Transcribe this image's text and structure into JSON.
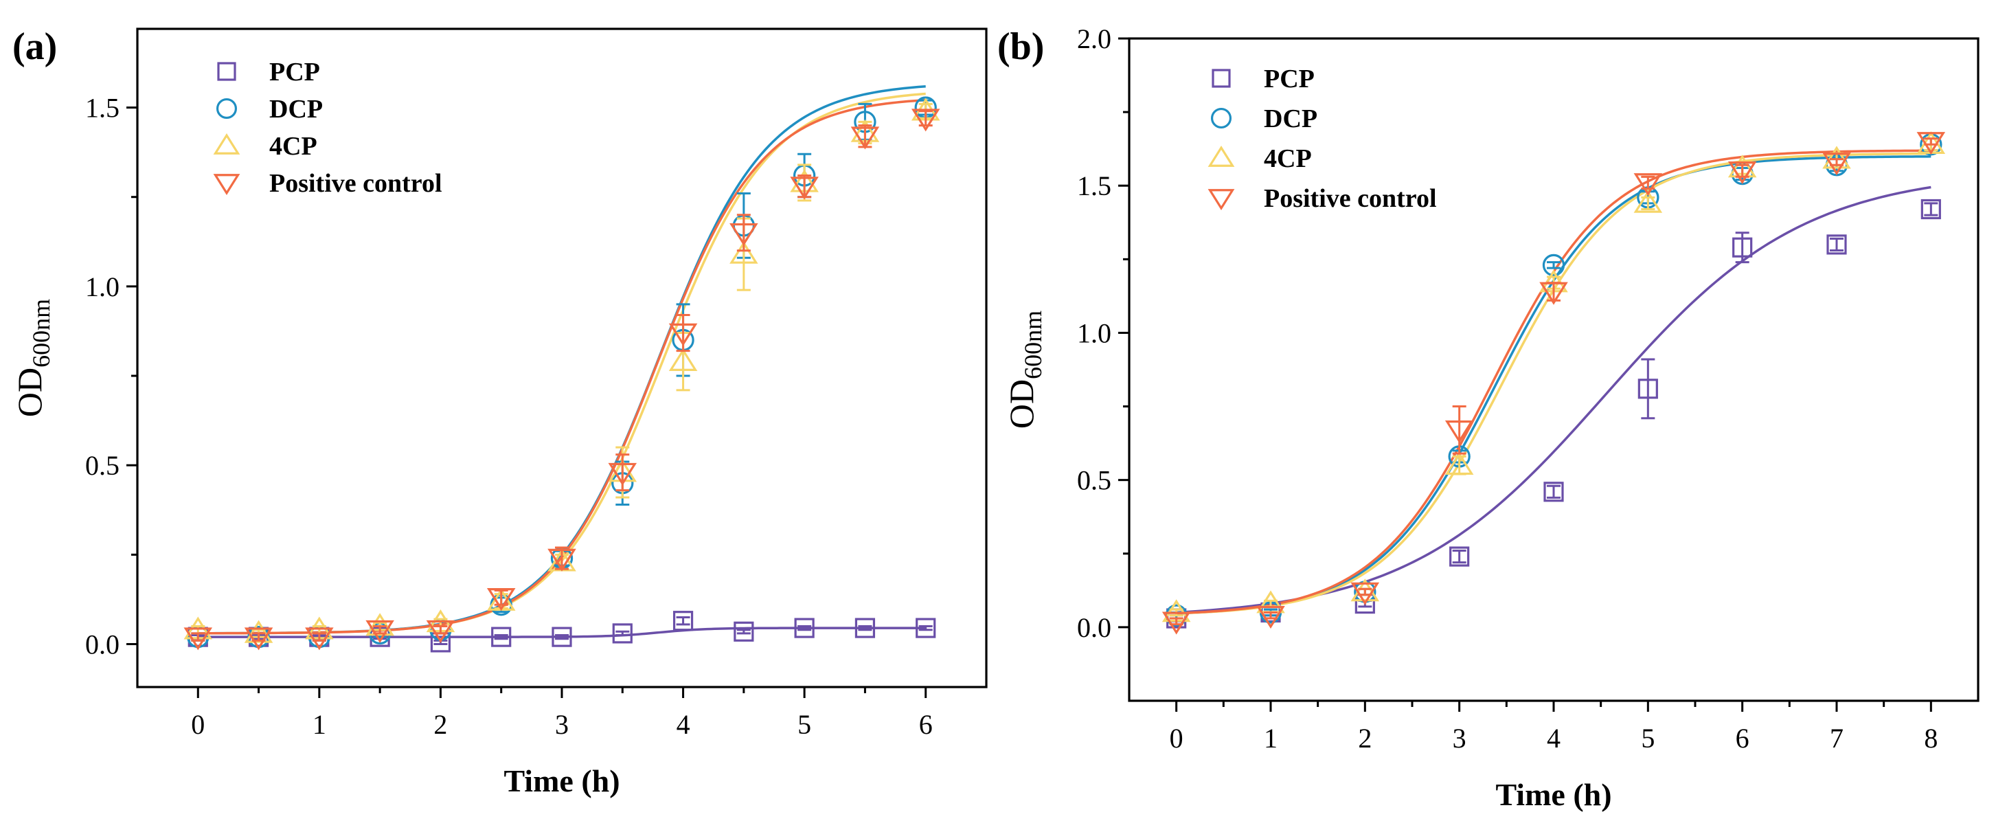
{
  "colors": {
    "PCP": "#6a4fa8",
    "DCP": "#1f8fc2",
    "4CP": "#f6d568",
    "Positive control": "#f26b43"
  },
  "chart_data": [
    {
      "type": "scatter",
      "panel_label": "(a)",
      "xlabel": "Time (h)",
      "ylabel": {
        "main": "OD",
        "sub": "600nm"
      },
      "xlim": [
        -0.5,
        6.5
      ],
      "ylim": [
        -0.12,
        1.72
      ],
      "xticks": [
        0,
        1,
        2,
        3,
        4,
        5,
        6
      ],
      "xtick_labels": [
        "0",
        "1",
        "2",
        "3",
        "4",
        "5",
        "6"
      ],
      "yticks": [
        0,
        0.5,
        1,
        1.5
      ],
      "ytick_labels": [
        "0.0",
        "0.5",
        "1.0",
        "1.5"
      ],
      "grid": false,
      "legend_position": "top-left",
      "series": [
        {
          "name": "PCP",
          "marker": "square",
          "x": [
            0,
            0.5,
            1,
            1.5,
            2,
            2.5,
            3,
            3.5,
            4,
            4.5,
            5,
            5.5,
            6
          ],
          "y": [
            0.02,
            0.02,
            0.02,
            0.02,
            0.005,
            0.02,
            0.02,
            0.03,
            0.065,
            0.035,
            0.045,
            0.045,
            0.045
          ],
          "err": [
            0.005,
            0.005,
            0.005,
            0.005,
            0.005,
            0.005,
            0.005,
            0.005,
            0.01,
            0.005,
            0.005,
            0.005,
            0.005
          ],
          "fit": {
            "base": 0.02,
            "top": 0.045,
            "x0": 3.8,
            "k": 5
          }
        },
        {
          "name": "DCP",
          "marker": "circle",
          "x": [
            0,
            0.5,
            1,
            1.5,
            2,
            2.5,
            3,
            3.5,
            4,
            4.5,
            5,
            5.5,
            6
          ],
          "y": [
            0.02,
            0.02,
            0.02,
            0.03,
            0.04,
            0.11,
            0.24,
            0.45,
            0.85,
            1.17,
            1.31,
            1.46,
            1.5
          ],
          "err": [
            0.01,
            0.01,
            0.01,
            0.01,
            0.01,
            0.02,
            0.02,
            0.06,
            0.1,
            0.09,
            0.06,
            0.05,
            0.02
          ],
          "fit": {
            "base": 0.03,
            "top": 1.57,
            "x0": 3.8,
            "k": 2.25
          }
        },
        {
          "name": "4CP",
          "marker": "triangle-up",
          "x": [
            0,
            0.5,
            1,
            1.5,
            2,
            2.5,
            3,
            3.5,
            4,
            4.5,
            5,
            5.5,
            6
          ],
          "y": [
            0.04,
            0.03,
            0.04,
            0.05,
            0.06,
            0.12,
            0.23,
            0.48,
            0.79,
            1.09,
            1.29,
            1.43,
            1.49
          ],
          "err": [
            0.01,
            0.01,
            0.01,
            0.01,
            0.01,
            0.02,
            0.02,
            0.07,
            0.08,
            0.1,
            0.05,
            0.03,
            0.02
          ],
          "fit": {
            "base": 0.03,
            "top": 1.55,
            "x0": 3.83,
            "k": 2.25
          }
        },
        {
          "name": "Positive control",
          "marker": "triangle-down",
          "x": [
            0,
            0.5,
            1,
            1.5,
            2,
            2.5,
            3,
            3.5,
            4,
            4.5,
            5,
            5.5,
            6
          ],
          "y": [
            0.02,
            0.02,
            0.02,
            0.04,
            0.04,
            0.13,
            0.24,
            0.48,
            0.87,
            1.15,
            1.28,
            1.42,
            1.47
          ],
          "err": [
            0.01,
            0.01,
            0.01,
            0.01,
            0.01,
            0.02,
            0.03,
            0.05,
            0.05,
            0.05,
            0.03,
            0.03,
            0.02
          ],
          "fit": {
            "base": 0.03,
            "top": 1.53,
            "x0": 3.78,
            "k": 2.3
          }
        }
      ]
    },
    {
      "type": "scatter",
      "panel_label": "(b)",
      "xlabel": "Time (h)",
      "ylabel": {
        "main": "OD",
        "sub": "600nm"
      },
      "xlim": [
        -0.5,
        8.5
      ],
      "ylim": [
        -0.25,
        2.0
      ],
      "xticks": [
        0,
        1,
        2,
        3,
        4,
        5,
        6,
        7,
        8
      ],
      "xtick_labels": [
        "0",
        "1",
        "2",
        "3",
        "4",
        "5",
        "6",
        "7",
        "8"
      ],
      "yticks": [
        0,
        0.5,
        1,
        1.5,
        2
      ],
      "ytick_labels": [
        "0.0",
        "0.5",
        "1.0",
        "1.5",
        "2.0"
      ],
      "grid": false,
      "legend_position": "top-left",
      "series": [
        {
          "name": "PCP",
          "marker": "square",
          "x": [
            0,
            1,
            2,
            3,
            4,
            5,
            6,
            7,
            8
          ],
          "y": [
            0.03,
            0.05,
            0.08,
            0.24,
            0.46,
            0.81,
            1.29,
            1.3,
            1.42
          ],
          "err": [
            0.01,
            0.01,
            0.01,
            0.02,
            0.02,
            0.1,
            0.05,
            0.02,
            0.02
          ],
          "fit": {
            "base": 0.03,
            "top": 1.55,
            "x0": 4.55,
            "k": 0.95
          }
        },
        {
          "name": "DCP",
          "marker": "circle",
          "x": [
            0,
            1,
            2,
            3,
            4,
            5,
            6,
            7,
            8
          ],
          "y": [
            0.04,
            0.05,
            0.12,
            0.58,
            1.23,
            1.46,
            1.54,
            1.57,
            1.64
          ],
          "err": [
            0.01,
            0.01,
            0.01,
            0.02,
            0.01,
            0.02,
            0.02,
            0.02,
            0.02
          ],
          "fit": {
            "base": 0.04,
            "top": 1.6,
            "x0": 3.38,
            "k": 1.6
          }
        },
        {
          "name": "4CP",
          "marker": "triangle-up",
          "x": [
            0,
            1,
            2,
            3,
            4,
            5,
            6,
            7,
            8
          ],
          "y": [
            0.05,
            0.08,
            0.12,
            0.55,
            1.17,
            1.44,
            1.56,
            1.59,
            1.64
          ],
          "err": [
            0.01,
            0.01,
            0.01,
            0.03,
            0.02,
            0.02,
            0.02,
            0.02,
            0.02
          ],
          "fit": {
            "base": 0.04,
            "top": 1.61,
            "x0": 3.45,
            "k": 1.58
          }
        },
        {
          "name": "Positive control",
          "marker": "triangle-down",
          "x": [
            0,
            1,
            2,
            3,
            4,
            5,
            6,
            7,
            8
          ],
          "y": [
            0.02,
            0.04,
            0.12,
            0.67,
            1.14,
            1.51,
            1.55,
            1.58,
            1.65
          ],
          "err": [
            0.01,
            0.01,
            0.01,
            0.08,
            0.03,
            0.02,
            0.02,
            0.01,
            0.01
          ],
          "fit": {
            "base": 0.04,
            "top": 1.62,
            "x0": 3.35,
            "k": 1.6
          }
        }
      ]
    }
  ]
}
